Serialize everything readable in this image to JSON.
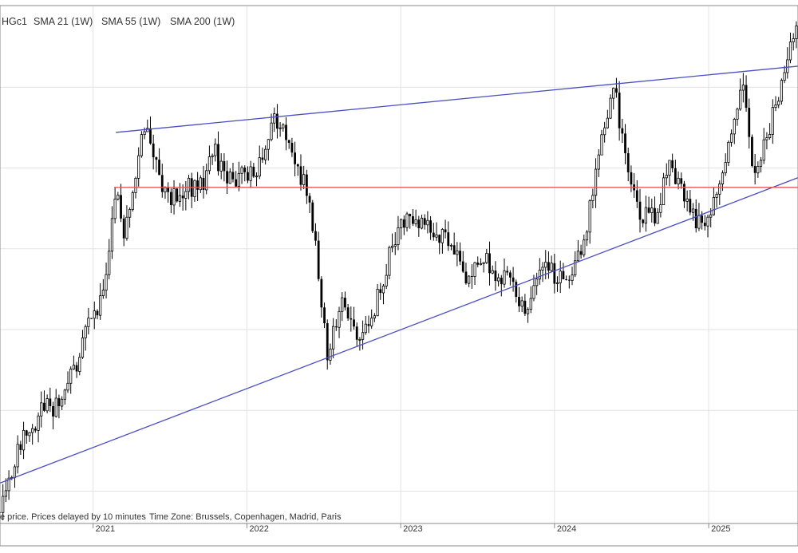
{
  "legend": {
    "symbol": "HGc1",
    "indicators": [
      "SMA 21 (1W)",
      "SMA 55 (1W)",
      "SMA 200 (1W)"
    ]
  },
  "footer": {
    "note": "e price. Prices delayed by 10 minutes",
    "timezone": "Time Zone: Brussels, Copenhagen, Madrid, Paris"
  },
  "colors": {
    "candle": "#000000",
    "trendline": "#4a4fc4",
    "support": "#e05a5a",
    "grid": "#e2e2e2"
  },
  "chart_data": {
    "type": "candlestick",
    "title": "",
    "interval": "1W",
    "x_ticks": [
      "2021",
      "2022",
      "2023",
      "2024",
      "2025"
    ],
    "xlim": [
      "2020-05-25",
      "2025-08-01"
    ],
    "ylim": [
      2.3,
      5.5
    ],
    "grid": true,
    "trendlines": [
      {
        "color": "#4a4fc4",
        "points": [
          [
            "2021-02-24",
            4.72
          ],
          [
            "2025-08-01",
            5.13
          ]
        ]
      },
      {
        "color": "#4a4fc4",
        "points": [
          [
            "2020-05-25",
            2.55
          ],
          [
            "2025-08-01",
            4.44
          ]
        ]
      },
      {
        "color": "#e05a5a",
        "points": [
          [
            "2021-02-20",
            4.38
          ],
          [
            "2025-08-01",
            4.38
          ]
        ]
      }
    ],
    "weekly_closes": [
      [
        "2020-05-25",
        2.37
      ],
      [
        "2020-06-29",
        2.7
      ],
      [
        "2020-08-03",
        2.9
      ],
      [
        "2020-09-07",
        3.0
      ],
      [
        "2020-10-12",
        3.05
      ],
      [
        "2020-11-16",
        3.25
      ],
      [
        "2020-12-21",
        3.55
      ],
      [
        "2021-01-11",
        3.6
      ],
      [
        "2021-02-01",
        3.8
      ],
      [
        "2021-02-22",
        4.35
      ],
      [
        "2021-03-15",
        4.1
      ],
      [
        "2021-04-19",
        4.6
      ],
      [
        "2021-05-10",
        4.75
      ],
      [
        "2021-06-07",
        4.4
      ],
      [
        "2021-07-05",
        4.3
      ],
      [
        "2021-08-09",
        4.4
      ],
      [
        "2021-09-06",
        4.35
      ],
      [
        "2021-10-18",
        4.6
      ],
      [
        "2021-11-15",
        4.4
      ],
      [
        "2021-12-20",
        4.45
      ],
      [
        "2022-01-24",
        4.5
      ],
      [
        "2022-03-07",
        4.8
      ],
      [
        "2022-04-11",
        4.7
      ],
      [
        "2022-05-16",
        4.4
      ],
      [
        "2022-06-13",
        4.05
      ],
      [
        "2022-07-11",
        3.35
      ],
      [
        "2022-08-15",
        3.65
      ],
      [
        "2022-09-19",
        3.45
      ],
      [
        "2022-10-24",
        3.55
      ],
      [
        "2022-11-28",
        3.9
      ],
      [
        "2023-01-16",
        4.2
      ],
      [
        "2023-02-20",
        4.15
      ],
      [
        "2023-03-27",
        4.1
      ],
      [
        "2023-05-01",
        4.0
      ],
      [
        "2023-06-05",
        3.85
      ],
      [
        "2023-07-10",
        3.95
      ],
      [
        "2023-08-14",
        3.85
      ],
      [
        "2023-09-18",
        3.8
      ],
      [
        "2023-10-23",
        3.62
      ],
      [
        "2023-11-27",
        3.85
      ],
      [
        "2024-01-08",
        3.85
      ],
      [
        "2024-02-12",
        3.8
      ],
      [
        "2024-03-11",
        4.05
      ],
      [
        "2024-04-15",
        4.55
      ],
      [
        "2024-05-20",
        5.05
      ],
      [
        "2024-06-17",
        4.55
      ],
      [
        "2024-07-22",
        4.2
      ],
      [
        "2024-08-26",
        4.2
      ],
      [
        "2024-09-30",
        4.5
      ],
      [
        "2024-11-04",
        4.35
      ],
      [
        "2024-12-09",
        4.15
      ],
      [
        "2025-01-13",
        4.3
      ],
      [
        "2025-02-17",
        4.6
      ],
      [
        "2025-03-24",
        5.05
      ],
      [
        "2025-04-14",
        4.45
      ],
      [
        "2025-05-19",
        4.7
      ],
      [
        "2025-06-23",
        5.0
      ],
      [
        "2025-07-28",
        5.4
      ]
    ]
  }
}
